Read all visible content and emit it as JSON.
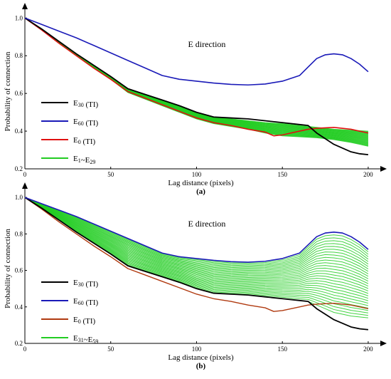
{
  "chart_data": [
    {
      "type": "line",
      "title": "E direction",
      "panel_label": "(a)",
      "xlabel": "Lag distance (pixels)",
      "ylabel": "Probability of connection",
      "xlim": [
        0,
        205
      ],
      "ylim": [
        0.2,
        1.02
      ],
      "xticks": [
        0,
        50,
        100,
        150,
        200
      ],
      "yticks": [
        0.2,
        0.4,
        0.6,
        0.8,
        1.0
      ],
      "ytick_labels": [
        "0.2",
        "0.4",
        "0.6",
        "0.8",
        "1.0"
      ],
      "legend_position": "left",
      "series": [
        {
          "name": "E30 (TI)",
          "color": "#000000",
          "width": 1.8,
          "x": [
            0,
            10,
            20,
            30,
            40,
            50,
            60,
            70,
            80,
            90,
            100,
            110,
            120,
            130,
            140,
            150,
            160,
            165,
            170,
            180,
            190,
            195,
            200
          ],
          "y": [
            1.0,
            0.94,
            0.875,
            0.81,
            0.75,
            0.69,
            0.625,
            0.595,
            0.565,
            0.535,
            0.5,
            0.475,
            0.47,
            0.465,
            0.455,
            0.445,
            0.435,
            0.43,
            0.39,
            0.33,
            0.29,
            0.28,
            0.275
          ]
        },
        {
          "name": "E60 (TI)",
          "color": "#1a1ab8",
          "width": 1.6,
          "x": [
            0,
            10,
            20,
            30,
            40,
            50,
            60,
            70,
            80,
            90,
            100,
            110,
            120,
            130,
            140,
            150,
            160,
            165,
            170,
            175,
            180,
            185,
            190,
            195,
            200
          ],
          "y": [
            1.0,
            0.965,
            0.93,
            0.895,
            0.855,
            0.815,
            0.775,
            0.735,
            0.695,
            0.675,
            0.665,
            0.655,
            0.648,
            0.645,
            0.65,
            0.665,
            0.695,
            0.74,
            0.785,
            0.805,
            0.81,
            0.805,
            0.785,
            0.755,
            0.715
          ]
        },
        {
          "name": "E0 (TI)",
          "color": "#e01010",
          "width": 1.6,
          "x": [
            0,
            10,
            20,
            30,
            40,
            50,
            60,
            70,
            80,
            90,
            100,
            110,
            120,
            130,
            140,
            145,
            150,
            160,
            165,
            170,
            180,
            190,
            200
          ],
          "y": [
            1.0,
            0.935,
            0.865,
            0.8,
            0.735,
            0.675,
            0.61,
            0.575,
            0.54,
            0.505,
            0.47,
            0.445,
            0.43,
            0.41,
            0.395,
            0.375,
            0.38,
            0.4,
            0.41,
            0.415,
            0.42,
            0.41,
            0.39
          ]
        },
        {
          "name": "E1~E29",
          "color": "#22cc22",
          "width": 1.0,
          "count": 29,
          "x": [
            0,
            10,
            20,
            30,
            40,
            50,
            60,
            70,
            80,
            90,
            100,
            110,
            120,
            130,
            140,
            150,
            160,
            170,
            180,
            190,
            200
          ],
          "y_low": [
            1.0,
            0.935,
            0.865,
            0.8,
            0.735,
            0.675,
            0.605,
            0.57,
            0.535,
            0.5,
            0.465,
            0.44,
            0.425,
            0.41,
            0.39,
            0.375,
            0.37,
            0.365,
            0.355,
            0.34,
            0.32
          ],
          "y_high": [
            1.0,
            0.942,
            0.875,
            0.81,
            0.75,
            0.69,
            0.625,
            0.595,
            0.565,
            0.535,
            0.5,
            0.475,
            0.465,
            0.455,
            0.445,
            0.44,
            0.43,
            0.42,
            0.41,
            0.405,
            0.4
          ]
        }
      ]
    },
    {
      "type": "line",
      "title": "E direction",
      "panel_label": "(b)",
      "xlabel": "Lag distance (pixels)",
      "ylabel": "Probability of connection",
      "xlim": [
        0,
        205
      ],
      "ylim": [
        0.2,
        1.02
      ],
      "xticks": [
        0,
        50,
        100,
        150,
        200
      ],
      "yticks": [
        0.2,
        0.4,
        0.6,
        0.8,
        1.0
      ],
      "ytick_labels": [
        "0.2",
        "0.4",
        "0.6",
        "0.8",
        "1.0"
      ],
      "legend_position": "left",
      "series": [
        {
          "name": "E30 (TI)",
          "color": "#000000",
          "width": 1.8,
          "x": [
            0,
            10,
            20,
            30,
            40,
            50,
            60,
            70,
            80,
            90,
            100,
            110,
            120,
            130,
            140,
            150,
            160,
            165,
            170,
            180,
            190,
            195,
            200
          ],
          "y": [
            1.0,
            0.94,
            0.875,
            0.81,
            0.75,
            0.69,
            0.625,
            0.595,
            0.565,
            0.535,
            0.5,
            0.475,
            0.47,
            0.465,
            0.455,
            0.445,
            0.435,
            0.43,
            0.39,
            0.33,
            0.29,
            0.28,
            0.275
          ]
        },
        {
          "name": "E60 (TI)",
          "color": "#1a1ab8",
          "width": 1.6,
          "x": [
            0,
            10,
            20,
            30,
            40,
            50,
            60,
            70,
            80,
            90,
            100,
            110,
            120,
            130,
            140,
            150,
            160,
            165,
            170,
            175,
            180,
            185,
            190,
            195,
            200
          ],
          "y": [
            1.0,
            0.965,
            0.93,
            0.895,
            0.855,
            0.815,
            0.775,
            0.735,
            0.695,
            0.675,
            0.665,
            0.655,
            0.648,
            0.645,
            0.65,
            0.665,
            0.695,
            0.74,
            0.785,
            0.805,
            0.81,
            0.805,
            0.785,
            0.755,
            0.715
          ]
        },
        {
          "name": "E0 (TI)",
          "color": "#b03a10",
          "width": 1.4,
          "x": [
            0,
            10,
            20,
            30,
            40,
            50,
            60,
            70,
            80,
            90,
            100,
            110,
            120,
            130,
            140,
            145,
            150,
            160,
            165,
            170,
            180,
            190,
            200
          ],
          "y": [
            1.0,
            0.935,
            0.865,
            0.8,
            0.735,
            0.675,
            0.61,
            0.575,
            0.54,
            0.505,
            0.47,
            0.445,
            0.43,
            0.41,
            0.395,
            0.375,
            0.38,
            0.4,
            0.41,
            0.415,
            0.42,
            0.41,
            0.39
          ]
        },
        {
          "name": "E31~E59",
          "color": "#22cc22",
          "width": 1.0,
          "count": 29,
          "x": [
            0,
            10,
            20,
            30,
            40,
            50,
            60,
            70,
            80,
            90,
            100,
            110,
            120,
            130,
            140,
            150,
            160,
            165,
            170,
            175,
            180,
            185,
            190,
            195,
            200
          ],
          "y_low": [
            1.0,
            0.94,
            0.875,
            0.81,
            0.75,
            0.69,
            0.625,
            0.595,
            0.565,
            0.535,
            0.5,
            0.475,
            0.47,
            0.465,
            0.455,
            0.445,
            0.435,
            0.43,
            0.41,
            0.39,
            0.37,
            0.36,
            0.35,
            0.345,
            0.34
          ],
          "y_high": [
            1.0,
            0.965,
            0.93,
            0.895,
            0.855,
            0.815,
            0.775,
            0.735,
            0.695,
            0.675,
            0.665,
            0.655,
            0.648,
            0.645,
            0.65,
            0.665,
            0.695,
            0.74,
            0.785,
            0.805,
            0.81,
            0.805,
            0.785,
            0.755,
            0.715
          ]
        }
      ]
    }
  ]
}
